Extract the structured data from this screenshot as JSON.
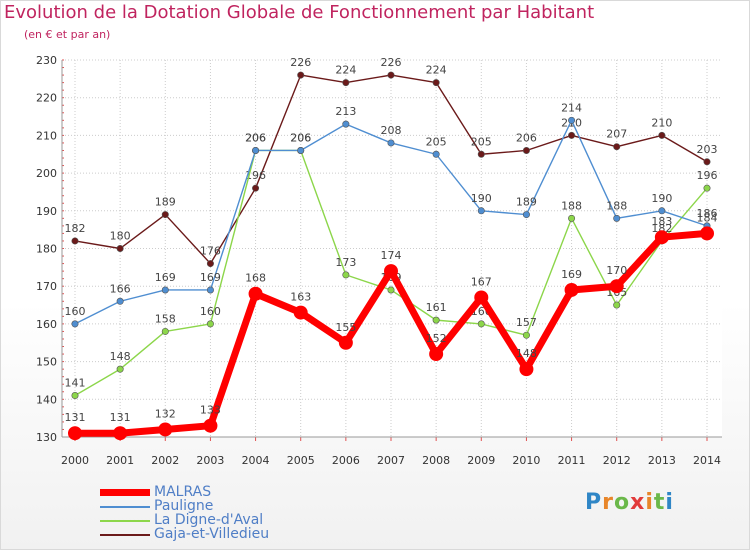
{
  "title": "Evolution de la Dotation Globale de Fonctionnement par Habitant",
  "subtitle": "(en € et par an)",
  "brand": "Proxiti",
  "chart_data": {
    "type": "line",
    "title": "Evolution de la Dotation Globale de Fonctionnement par Habitant",
    "ylabel": "(en € et par an)",
    "xlabel": "",
    "x": [
      "2000",
      "2001",
      "2002",
      "2003",
      "2004",
      "2005",
      "2006",
      "2007",
      "2008",
      "2009",
      "2010",
      "2011",
      "2012",
      "2013",
      "2014"
    ],
    "ylim": [
      130,
      230
    ],
    "yticks": [
      130,
      140,
      150,
      160,
      170,
      180,
      190,
      200,
      210,
      220,
      230
    ],
    "grid": true,
    "legend_position": "bottom-left",
    "series": [
      {
        "name": "MALRAS",
        "color": "#ff0000",
        "values": [
          131,
          131,
          132,
          133,
          168,
          163,
          155,
          174,
          152,
          167,
          148,
          169,
          170,
          183,
          184
        ]
      },
      {
        "name": "Pauligne",
        "color": "#4f8ed1",
        "values": [
          160,
          166,
          169,
          169,
          206,
          206,
          213,
          208,
          205,
          190,
          189,
          214,
          188,
          190,
          186
        ]
      },
      {
        "name": "La Digne-d'Aval",
        "color": "#8cd64a",
        "values": [
          141,
          148,
          158,
          160,
          206,
          206,
          173,
          169,
          161,
          160,
          157,
          188,
          165,
          182,
          196
        ]
      },
      {
        "name": "Gaja-et-Villedieu",
        "color": "#6b1a1a",
        "values": [
          182,
          180,
          189,
          176,
          196,
          226,
          224,
          226,
          224,
          205,
          206,
          210,
          207,
          210,
          203
        ]
      }
    ]
  }
}
